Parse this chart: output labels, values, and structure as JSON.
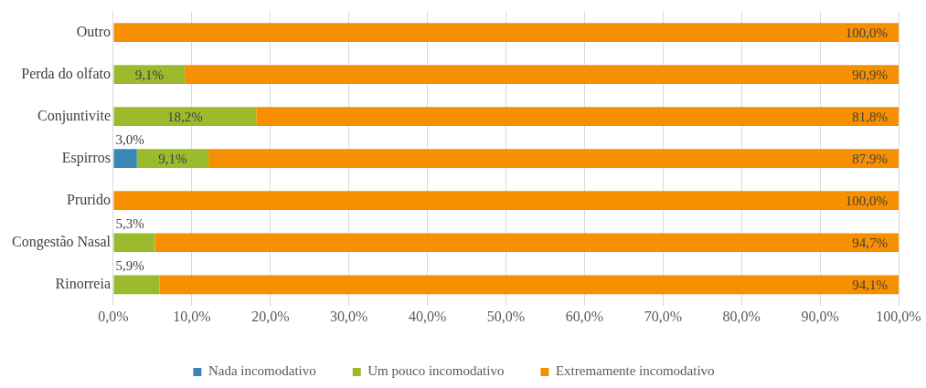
{
  "chart_data": {
    "type": "bar",
    "orientation": "horizontal",
    "stacked": true,
    "categories": [
      "Outro",
      "Perda do olfato",
      "Conjuntivite",
      "Espirros",
      "Prurido",
      "Congestão Nasal",
      "Rinorreia"
    ],
    "series": [
      {
        "name": "Nada incomodativo",
        "color": "#3a87b5",
        "values": [
          0,
          0,
          0,
          3.0,
          0,
          0,
          0
        ],
        "value_labels": [
          null,
          null,
          null,
          "3,0%",
          null,
          null,
          null
        ]
      },
      {
        "name": "Um pouco incomodativo",
        "color": "#9bbb2c",
        "values": [
          0,
          9.1,
          18.2,
          9.1,
          0,
          5.3,
          5.9
        ],
        "value_labels": [
          null,
          "9,1%",
          "18,2%",
          "9,1%",
          null,
          "5,3%",
          "5,9%"
        ]
      },
      {
        "name": "Extremamente incomodativo",
        "color": "#f79000",
        "values": [
          100,
          90.9,
          81.8,
          87.9,
          100,
          94.7,
          94.1
        ],
        "value_labels": [
          "100,0%",
          "90,9%",
          "81,8%",
          "87,9%",
          "100,0%",
          "94,7%",
          "94,1%"
        ]
      }
    ],
    "xlim": [
      0,
      100
    ],
    "xticks": [
      {
        "value": 0,
        "label": "0,0%"
      },
      {
        "value": 10,
        "label": "10,0%"
      },
      {
        "value": 20,
        "label": "20,0%"
      },
      {
        "value": 30,
        "label": "30,0%"
      },
      {
        "value": 40,
        "label": "40,0%"
      },
      {
        "value": 50,
        "label": "50,0%"
      },
      {
        "value": 60,
        "label": "60,0%"
      },
      {
        "value": 70,
        "label": "70,0%"
      },
      {
        "value": 80,
        "label": "80,0%"
      },
      {
        "value": 90,
        "label": "90,0%"
      },
      {
        "value": 100,
        "label": "100,0%"
      }
    ],
    "grid": "x",
    "legend": "bottom"
  }
}
